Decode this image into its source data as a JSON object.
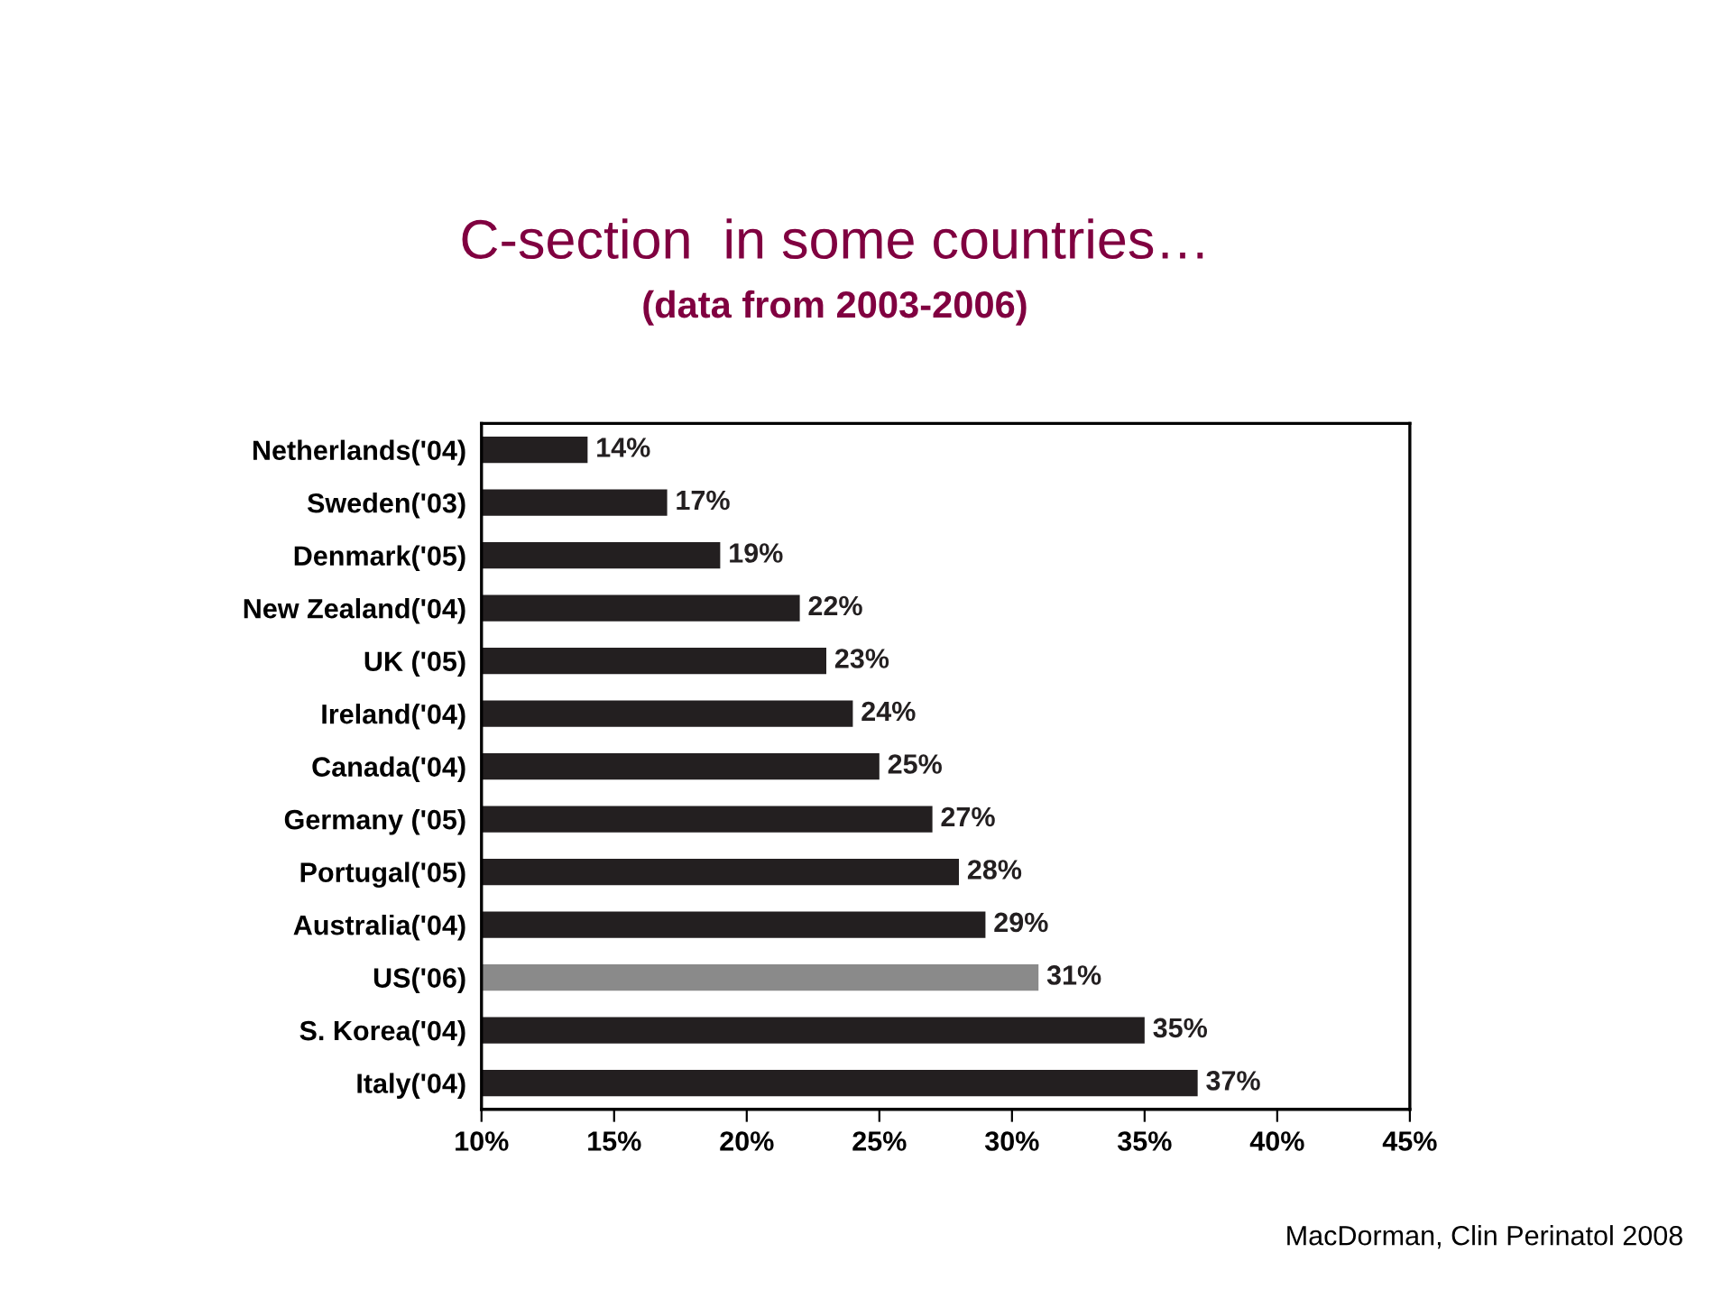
{
  "chart_data": {
    "type": "bar",
    "orientation": "horizontal",
    "title": "C-section  in some countries…",
    "subtitle": "(data from 2003-2006)",
    "categories": [
      "Netherlands('04)",
      "Sweden('03)",
      "Denmark('05)",
      "New Zealand('04)",
      "UK ('05)",
      "Ireland('04)",
      "Canada('04)",
      "Germany ('05)",
      "Portugal('05)",
      "Australia('04)",
      "US('06)",
      "S. Korea('04)",
      "Italy('04)"
    ],
    "values": [
      14,
      17,
      19,
      22,
      23,
      24,
      25,
      27,
      28,
      29,
      31,
      35,
      37
    ],
    "value_labels": [
      "14%",
      "17%",
      "19%",
      "22%",
      "23%",
      "24%",
      "25%",
      "27%",
      "28%",
      "29%",
      "31%",
      "35%",
      "37%"
    ],
    "colors": [
      "#231f20",
      "#231f20",
      "#231f20",
      "#231f20",
      "#231f20",
      "#231f20",
      "#231f20",
      "#231f20",
      "#231f20",
      "#231f20",
      "#8a8a8a",
      "#231f20",
      "#231f20"
    ],
    "xlim": [
      10,
      45
    ],
    "xticks": [
      {
        "value": 10,
        "label": "10%"
      },
      {
        "value": 15,
        "label": "15%"
      },
      {
        "value": 20,
        "label": "20%"
      },
      {
        "value": 25,
        "label": "25%"
      },
      {
        "value": 30,
        "label": "30%"
      },
      {
        "value": 35,
        "label": "35%"
      },
      {
        "value": 40,
        "label": "40%"
      },
      {
        "value": 45,
        "label": "45%"
      }
    ],
    "grid": false,
    "legend": false,
    "annotations": [
      "MacDorman, Clin Perinatol 2008"
    ]
  }
}
